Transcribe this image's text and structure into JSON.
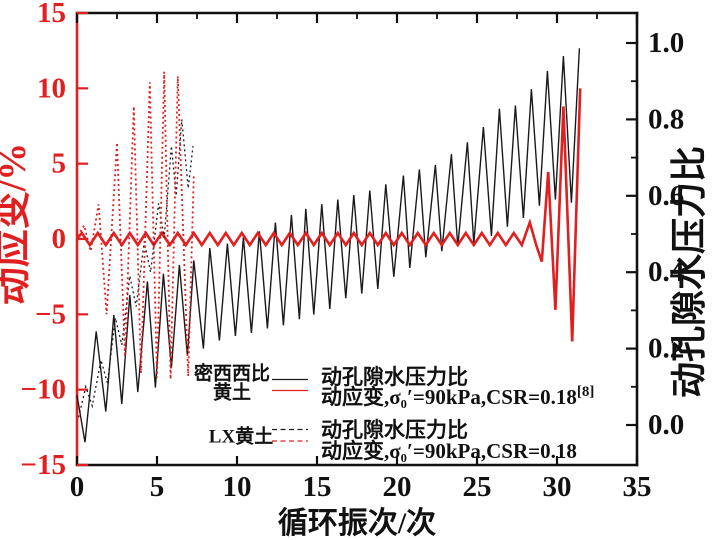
{
  "chart_data": {
    "type": "line",
    "title": "",
    "xlabel": "循环振次/次",
    "x_ticks": [
      0,
      5,
      10,
      15,
      20,
      25,
      30,
      35
    ],
    "x_tick_labels": [
      "0",
      "5",
      "10",
      "15",
      "20",
      "25",
      "30",
      "35"
    ],
    "x_minor_ticks": [
      2.5,
      7.5,
      12.5,
      17.5,
      22.5,
      27.5,
      32.5
    ],
    "xlim": [
      0,
      35
    ],
    "grid": false,
    "legend_position": "inside-bottom-center",
    "left_axis": {
      "label": "动应变/%",
      "ticks": [
        15,
        10,
        5,
        0,
        -5,
        -10,
        -15
      ],
      "tick_labels": [
        "15",
        "10",
        "5",
        "0",
        "−5",
        "−10",
        "−15"
      ],
      "lim": [
        -15,
        15
      ],
      "color": "#e02020"
    },
    "right_axis": {
      "label": "动孔隙水压力比",
      "ticks": [
        1.0,
        0.8,
        0.6,
        0.4,
        0.2,
        0.0
      ],
      "tick_labels": [
        "1.0",
        "0.8",
        "0.6",
        "0.4",
        "0.2",
        "0.0"
      ],
      "minor_ticks": [
        0.9,
        0.7,
        0.5,
        0.3,
        0.1
      ],
      "lim": [
        -0.105,
        1.078
      ],
      "color": "#111111"
    },
    "series": [
      {
        "id": "mississippi_pwp",
        "name": "密西西比黄土 动孔隙水压力比",
        "axis": "right",
        "line": "solid",
        "color": "#1a1a1a",
        "width": 1.4,
        "points": [
          [
            0,
            0.078
          ],
          [
            0.5,
            -0.045
          ],
          [
            1.2,
            0.245
          ],
          [
            1.8,
            0.035
          ],
          [
            2.3,
            0.288
          ],
          [
            2.8,
            0.055
          ],
          [
            3.3,
            0.34
          ],
          [
            3.8,
            0.086
          ],
          [
            4.4,
            0.376
          ],
          [
            4.9,
            0.098
          ],
          [
            5.4,
            0.396
          ],
          [
            5.9,
            0.15
          ],
          [
            6.4,
            0.419
          ],
          [
            6.9,
            0.181
          ],
          [
            7.3,
            0.431
          ],
          [
            7.9,
            0.2
          ],
          [
            8.3,
            0.463
          ],
          [
            8.9,
            0.221
          ],
          [
            9.4,
            0.475
          ],
          [
            9.9,
            0.233
          ],
          [
            10.4,
            0.491
          ],
          [
            10.9,
            0.241
          ],
          [
            11.4,
            0.507
          ],
          [
            11.9,
            0.253
          ],
          [
            12.4,
            0.53
          ],
          [
            12.9,
            0.261
          ],
          [
            13.4,
            0.55
          ],
          [
            13.9,
            0.277
          ],
          [
            14.3,
            0.566
          ],
          [
            14.8,
            0.289
          ],
          [
            15.3,
            0.578
          ],
          [
            15.8,
            0.304
          ],
          [
            16.3,
            0.59
          ],
          [
            16.8,
            0.332
          ],
          [
            17.3,
            0.602
          ],
          [
            17.8,
            0.344
          ],
          [
            18.3,
            0.614
          ],
          [
            18.8,
            0.356
          ],
          [
            19.3,
            0.63
          ],
          [
            19.8,
            0.388
          ],
          [
            20.4,
            0.653
          ],
          [
            20.8,
            0.411
          ],
          [
            21.4,
            0.669
          ],
          [
            21.8,
            0.439
          ],
          [
            22.4,
            0.681
          ],
          [
            22.8,
            0.455
          ],
          [
            23.4,
            0.709
          ],
          [
            23.8,
            0.467
          ],
          [
            24.4,
            0.74
          ],
          [
            24.8,
            0.475
          ],
          [
            25.4,
            0.78
          ],
          [
            25.9,
            0.495
          ],
          [
            26.4,
            0.828
          ],
          [
            26.9,
            0.519
          ],
          [
            27.4,
            0.836
          ],
          [
            27.9,
            0.542
          ],
          [
            28.4,
            0.879
          ],
          [
            28.9,
            0.574
          ],
          [
            29.4,
            0.927
          ],
          [
            29.9,
            0.59
          ],
          [
            30.4,
            0.966
          ],
          [
            30.9,
            0.582
          ],
          [
            31.4,
            0.986
          ]
        ]
      },
      {
        "id": "mississippi_strain",
        "name": "密西西比黄土 动应变",
        "axis": "left",
        "line": "solid",
        "color": "#e02020",
        "width": 2.6,
        "zigzag": {
          "x_start": 0,
          "x_end": 27.8,
          "amplitude": 0.4,
          "peak_phase": 0.3,
          "trough_phase": 0.8,
          "start_value": 0
        },
        "tail": [
          [
            28.3,
            1.1
          ],
          [
            28.7,
            -0.4
          ],
          [
            29.05,
            -1.5
          ],
          [
            29.45,
            4.45
          ],
          [
            29.9,
            -4.7
          ],
          [
            30.4,
            8.8
          ],
          [
            30.95,
            -6.8
          ],
          [
            31.45,
            10.0
          ]
        ]
      },
      {
        "id": "lx_pwp",
        "name": "LX黄土 动孔隙水压力比",
        "axis": "right",
        "line": "dotted",
        "color": "#1a1a1a",
        "width": 1.3,
        "points": [
          [
            0.1,
            0.02
          ],
          [
            0.55,
            0.1
          ],
          [
            0.95,
            0.05
          ],
          [
            1.5,
            0.17
          ],
          [
            1.9,
            0.11
          ],
          [
            2.4,
            0.28
          ],
          [
            2.8,
            0.21
          ],
          [
            3.3,
            0.39
          ],
          [
            3.7,
            0.31
          ],
          [
            4.2,
            0.48
          ],
          [
            4.6,
            0.4
          ],
          [
            5.1,
            0.58
          ],
          [
            5.45,
            0.49
          ],
          [
            5.9,
            0.73
          ],
          [
            6.2,
            0.6
          ],
          [
            6.55,
            0.8
          ],
          [
            6.95,
            0.62
          ],
          [
            7.25,
            0.73
          ]
        ]
      },
      {
        "id": "lx_strain",
        "name": "LX黄土 动应变",
        "axis": "left",
        "line": "dotted",
        "color": "#e02020",
        "width": 1.8,
        "points": [
          [
            0.05,
            0.2
          ],
          [
            0.45,
            0.9
          ],
          [
            0.85,
            -0.8
          ],
          [
            1.35,
            2.3
          ],
          [
            1.85,
            -5.0
          ],
          [
            2.5,
            6.4
          ],
          [
            3.0,
            -7.8
          ],
          [
            3.55,
            8.8
          ],
          [
            4.0,
            -8.9
          ],
          [
            4.55,
            10.4
          ],
          [
            5.0,
            -9.2
          ],
          [
            5.45,
            11.1
          ],
          [
            5.85,
            -9.3
          ],
          [
            6.3,
            10.8
          ],
          [
            6.95,
            -9.1
          ],
          [
            7.3,
            4.3
          ]
        ]
      }
    ]
  },
  "legend": {
    "groups": [
      {
        "label_lines": [
          "密西西比",
          "黄土"
        ],
        "entries": [
          {
            "text": "动孔隙水压力比",
            "sup": "",
            "style": "solid",
            "color": "#1a1a1a"
          },
          {
            "text": "动应变,σ₀′=90kPa,CSR=0.18",
            "sup": "[8]",
            "style": "solid",
            "color": "#e02020"
          }
        ]
      },
      {
        "label_lines": [
          "LX黄土"
        ],
        "entries": [
          {
            "text": "动孔隙水压力比",
            "sup": "",
            "style": "dashed",
            "color": "#1a1a1a"
          },
          {
            "text": "动应变,σ₀′=90kPa,CSR=0.18",
            "sup": "",
            "style": "dashed",
            "color": "#e02020"
          }
        ]
      }
    ]
  },
  "colors": {
    "accent_red": "#e02020",
    "ink": "#111111",
    "background": "#ffffff"
  }
}
